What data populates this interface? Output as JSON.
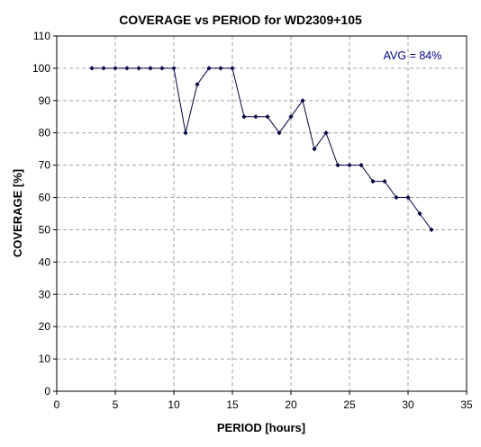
{
  "chart_data": {
    "type": "line",
    "title": "COVERAGE vs PERIOD for WD2309+105",
    "xlabel": "PERIOD [hours]",
    "ylabel": "COVERAGE [%]",
    "xlim": [
      0,
      35
    ],
    "ylim": [
      0,
      110
    ],
    "xticks": [
      0,
      5,
      10,
      15,
      20,
      25,
      30,
      35
    ],
    "yticks": [
      0,
      10,
      20,
      30,
      40,
      50,
      60,
      70,
      80,
      90,
      100,
      110
    ],
    "grid": true,
    "legend": "none",
    "annotation": "AVG = 84%",
    "series": [
      {
        "color": "#000040",
        "x": [
          3,
          4,
          5,
          6,
          7,
          8,
          9,
          10,
          11,
          12,
          13,
          14,
          15,
          16,
          17,
          18,
          19,
          20,
          21,
          22,
          23,
          24,
          25,
          26,
          27,
          28,
          29,
          30,
          31,
          32
        ],
        "y": [
          100,
          100,
          100,
          100,
          100,
          100,
          100,
          100,
          80,
          95,
          100,
          100,
          100,
          85,
          85,
          85,
          80,
          85,
          90,
          75,
          80,
          70,
          70,
          70,
          65,
          65,
          60,
          60,
          55,
          50
        ]
      }
    ]
  }
}
